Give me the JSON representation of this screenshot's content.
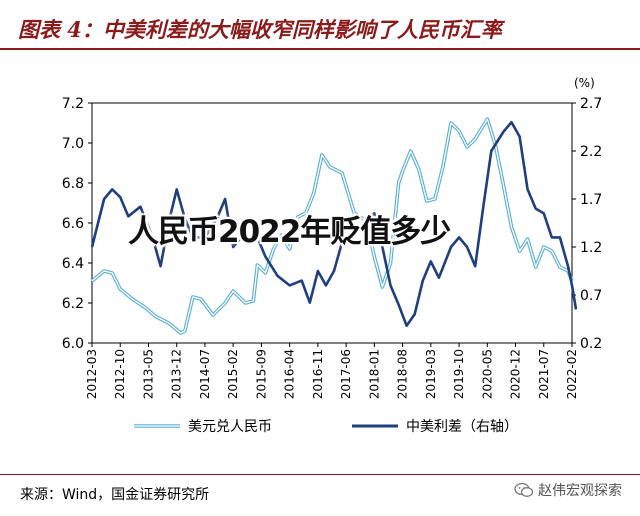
{
  "header": {
    "title": "图表 4：中美利差的大幅收窄同样影响了人民币汇率"
  },
  "overlay_text": "人民币2022年贬值多少",
  "footer": {
    "source": "来源：Wind，国金证券研究所",
    "watermark": "赵伟宏观探索"
  },
  "colors": {
    "title": "#8B1A1A",
    "usdcny": "#5BB0D8",
    "spread": "#1F3F7F"
  },
  "chart_data": {
    "type": "line",
    "title": "中美利差的大幅收窄同样影响了人民币汇率",
    "x_ticks": [
      "2012-03",
      "2012-10",
      "2013-05",
      "2013-12",
      "2014-07",
      "2015-02",
      "2015-09",
      "2016-04",
      "2016-11",
      "2017-06",
      "2018-01",
      "2018-08",
      "2019-03",
      "2019-10",
      "2020-05",
      "2020-12",
      "2021-07",
      "2022-02"
    ],
    "y_left": {
      "min": 6.0,
      "max": 7.2,
      "ticks": [
        "6.0",
        "6.2",
        "6.4",
        "6.6",
        "6.8",
        "7.0",
        "7.2"
      ]
    },
    "y_right": {
      "min": 0.2,
      "max": 2.7,
      "ticks": [
        "0.2",
        "0.7",
        "1.2",
        "1.7",
        "2.2",
        "2.7"
      ],
      "unit": "(%)"
    },
    "legend_position": "bottom",
    "series": [
      {
        "name": "美元兑人民币",
        "axis": "left",
        "style": "double",
        "points": [
          [
            "2012-03",
            6.31
          ],
          [
            "2012-06",
            6.36
          ],
          [
            "2012-08",
            6.35
          ],
          [
            "2012-10",
            6.27
          ],
          [
            "2013-01",
            6.22
          ],
          [
            "2013-04",
            6.18
          ],
          [
            "2013-07",
            6.13
          ],
          [
            "2013-10",
            6.1
          ],
          [
            "2014-01",
            6.05
          ],
          [
            "2014-02",
            6.06
          ],
          [
            "2014-04",
            6.23
          ],
          [
            "2014-06",
            6.22
          ],
          [
            "2014-09",
            6.14
          ],
          [
            "2014-12",
            6.2
          ],
          [
            "2015-02",
            6.26
          ],
          [
            "2015-05",
            6.2
          ],
          [
            "2015-07",
            6.21
          ],
          [
            "2015-08",
            6.39
          ],
          [
            "2015-10",
            6.35
          ],
          [
            "2015-12",
            6.47
          ],
          [
            "2016-02",
            6.54
          ],
          [
            "2016-04",
            6.47
          ],
          [
            "2016-06",
            6.63
          ],
          [
            "2016-08",
            6.65
          ],
          [
            "2016-10",
            6.75
          ],
          [
            "2016-12",
            6.94
          ],
          [
            "2017-02",
            6.88
          ],
          [
            "2017-05",
            6.85
          ],
          [
            "2017-08",
            6.65
          ],
          [
            "2017-11",
            6.61
          ],
          [
            "2018-01",
            6.43
          ],
          [
            "2018-03",
            6.28
          ],
          [
            "2018-05",
            6.4
          ],
          [
            "2018-07",
            6.8
          ],
          [
            "2018-08",
            6.86
          ],
          [
            "2018-10",
            6.96
          ],
          [
            "2018-12",
            6.87
          ],
          [
            "2019-02",
            6.71
          ],
          [
            "2019-04",
            6.72
          ],
          [
            "2019-06",
            6.88
          ],
          [
            "2019-08",
            7.1
          ],
          [
            "2019-10",
            7.06
          ],
          [
            "2019-12",
            6.98
          ],
          [
            "2020-02",
            7.02
          ],
          [
            "2020-05",
            7.12
          ],
          [
            "2020-07",
            6.99
          ],
          [
            "2020-09",
            6.79
          ],
          [
            "2020-11",
            6.58
          ],
          [
            "2021-01",
            6.46
          ],
          [
            "2021-03",
            6.52
          ],
          [
            "2021-05",
            6.38
          ],
          [
            "2021-07",
            6.48
          ],
          [
            "2021-09",
            6.46
          ],
          [
            "2021-11",
            6.38
          ],
          [
            "2022-01",
            6.36
          ],
          [
            "2022-02",
            6.31
          ]
        ]
      },
      {
        "name": "中美利差（右轴）",
        "axis": "right",
        "style": "solid",
        "points": [
          [
            "2012-03",
            1.2
          ],
          [
            "2012-06",
            1.7
          ],
          [
            "2012-08",
            1.8
          ],
          [
            "2012-10",
            1.72
          ],
          [
            "2012-12",
            1.52
          ],
          [
            "2013-03",
            1.62
          ],
          [
            "2013-06",
            1.3
          ],
          [
            "2013-08",
            1.0
          ],
          [
            "2013-10",
            1.45
          ],
          [
            "2013-12",
            1.8
          ],
          [
            "2014-02",
            1.5
          ],
          [
            "2014-04",
            1.3
          ],
          [
            "2014-07",
            1.3
          ],
          [
            "2014-10",
            1.5
          ],
          [
            "2014-12",
            1.7
          ],
          [
            "2015-02",
            1.2
          ],
          [
            "2015-04",
            1.3
          ],
          [
            "2015-06",
            1.5
          ],
          [
            "2015-08",
            1.3
          ],
          [
            "2015-10",
            1.1
          ],
          [
            "2016-01",
            0.9
          ],
          [
            "2016-04",
            0.8
          ],
          [
            "2016-07",
            0.85
          ],
          [
            "2016-09",
            0.62
          ],
          [
            "2016-11",
            0.95
          ],
          [
            "2017-01",
            0.8
          ],
          [
            "2017-03",
            0.95
          ],
          [
            "2017-05",
            1.25
          ],
          [
            "2017-08",
            1.3
          ],
          [
            "2017-11",
            1.5
          ],
          [
            "2018-01",
            1.55
          ],
          [
            "2018-03",
            1.2
          ],
          [
            "2018-05",
            0.8
          ],
          [
            "2018-07",
            0.6
          ],
          [
            "2018-09",
            0.38
          ],
          [
            "2018-11",
            0.5
          ],
          [
            "2019-01",
            0.85
          ],
          [
            "2019-03",
            1.05
          ],
          [
            "2019-05",
            0.88
          ],
          [
            "2019-08",
            1.2
          ],
          [
            "2019-10",
            1.3
          ],
          [
            "2019-12",
            1.2
          ],
          [
            "2020-02",
            1.0
          ],
          [
            "2020-04",
            1.62
          ],
          [
            "2020-06",
            2.2
          ],
          [
            "2020-09",
            2.4
          ],
          [
            "2020-11",
            2.5
          ],
          [
            "2021-01",
            2.35
          ],
          [
            "2021-03",
            1.8
          ],
          [
            "2021-05",
            1.6
          ],
          [
            "2021-07",
            1.55
          ],
          [
            "2021-09",
            1.3
          ],
          [
            "2021-11",
            1.3
          ],
          [
            "2022-01",
            1.0
          ],
          [
            "2022-02",
            0.8
          ],
          [
            "2022-03",
            0.55
          ]
        ]
      }
    ]
  }
}
